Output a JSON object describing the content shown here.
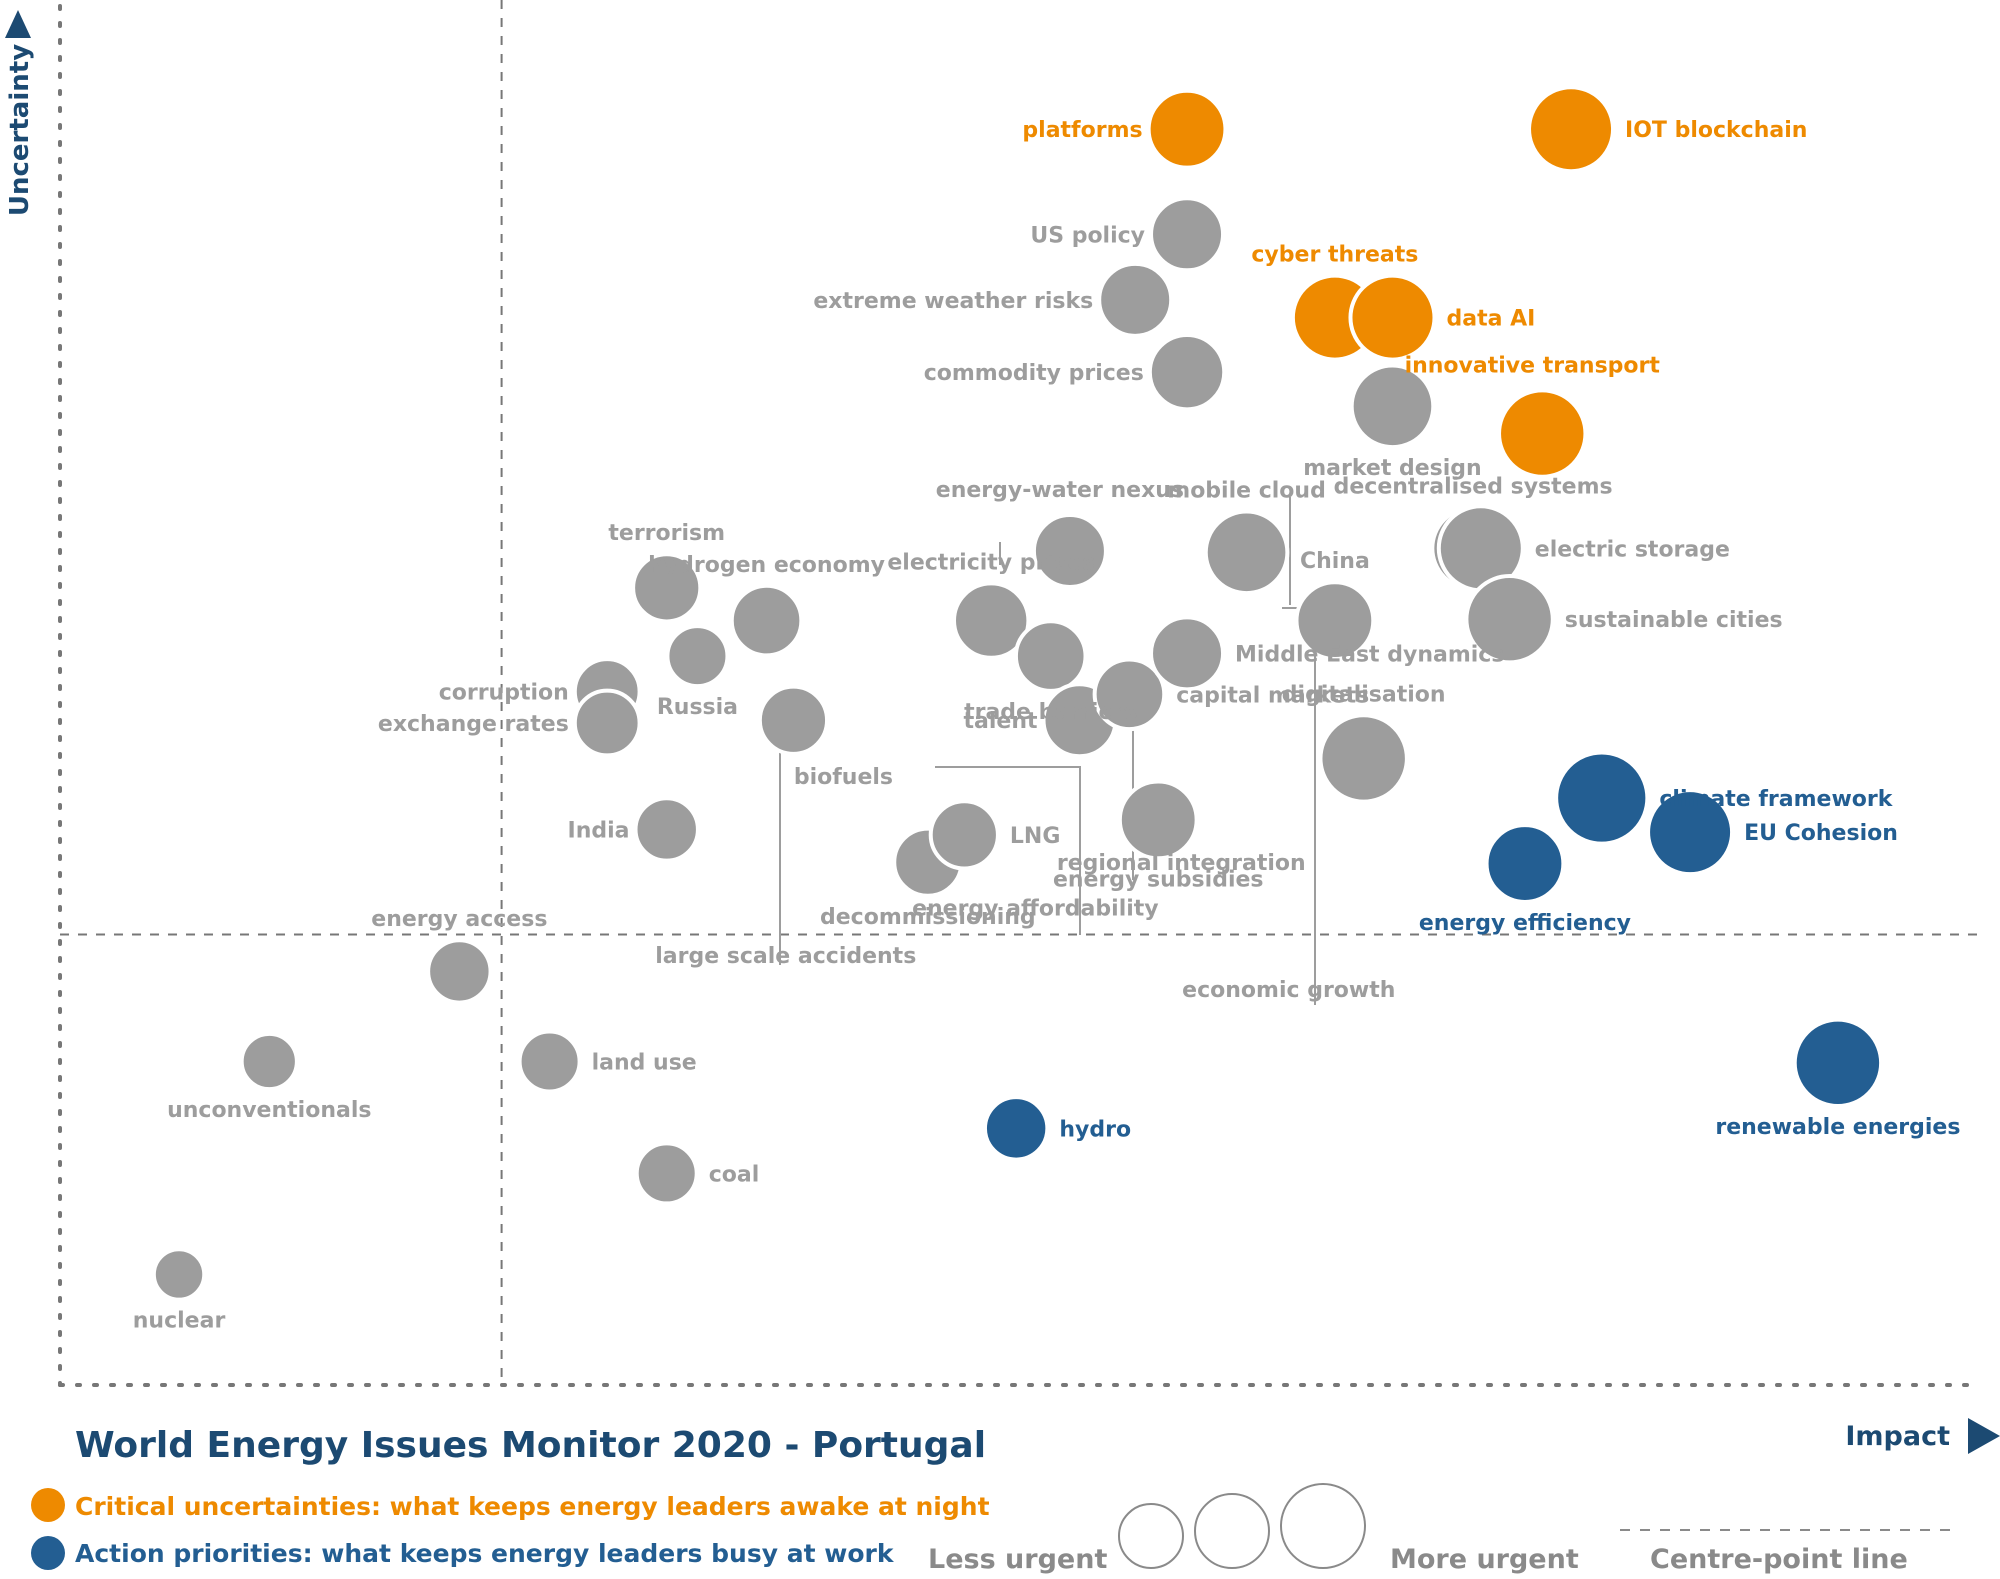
{
  "chart_data": {
    "type": "scatter",
    "title": "World Energy Issues Monitor 2020 - Portugal",
    "xlabel": "Impact",
    "ylabel": "Uncertainty",
    "xlim": [
      0,
      100
    ],
    "ylim": [
      0,
      100
    ],
    "centre_point": {
      "x": 23,
      "y": 33
    },
    "colors": {
      "critical": "#ee8a00",
      "action": "#235e92",
      "other": "#9d9d9d",
      "axis": "#777777",
      "title": "#1c4a72"
    },
    "categories": {
      "critical": "Critical uncertainties: what keeps energy leaders awake at night",
      "action": "Action priorities: what keeps energy leaders busy at work"
    },
    "size_legend": {
      "less": "Less urgent",
      "more": "More urgent",
      "centre": "Centre-point  line"
    },
    "issues": [
      {
        "name": "platforms",
        "x": 58.7,
        "y": 92.0,
        "size": 3.2,
        "cat": "critical",
        "lp": "left"
      },
      {
        "name": "IOT blockchain",
        "x": 78.7,
        "y": 92.0,
        "size": 3.5,
        "cat": "critical",
        "lp": "right"
      },
      {
        "name": "cyber threats",
        "x": 66.4,
        "y": 78.2,
        "size": 3.5,
        "cat": "critical",
        "lp": "above"
      },
      {
        "name": "data AI",
        "x": 69.4,
        "y": 78.2,
        "size": 3.5,
        "cat": "critical",
        "lp": "right"
      },
      {
        "name": "innovative transport",
        "x": 77.2,
        "y": 69.7,
        "size": 3.6,
        "cat": "critical",
        "lp": "aboveleft"
      },
      {
        "name": "US policy",
        "x": 58.7,
        "y": 84.3,
        "size": 3.0,
        "cat": "other",
        "lp": "left"
      },
      {
        "name": "extreme weather risks",
        "x": 56.0,
        "y": 79.5,
        "size": 3.0,
        "cat": "other",
        "lp": "left"
      },
      {
        "name": "commodity prices",
        "x": 58.7,
        "y": 74.2,
        "size": 3.1,
        "cat": "other",
        "lp": "left"
      },
      {
        "name": "market design",
        "x": 69.4,
        "y": 71.7,
        "size": 3.4,
        "cat": "other",
        "lp": "below"
      },
      {
        "name": "energy-water nexus",
        "x": 52.6,
        "y": 61.1,
        "size": 3.0,
        "cat": "other",
        "lp": "aboveleft"
      },
      {
        "name": "mobile cloud",
        "x": 61.8,
        "y": 61.0,
        "size": 3.4,
        "cat": "other",
        "lp": "above"
      },
      {
        "name": "decentralised systems",
        "x": 73.6,
        "y": 61.3,
        "size": 3.4,
        "cat": "other",
        "lp": "above"
      },
      {
        "name": "electric storage",
        "x": 74.0,
        "y": 61.3,
        "size": 3.5,
        "cat": "other",
        "lp": "right"
      },
      {
        "name": "China",
        "x": 66.4,
        "y": 56.0,
        "size": 3.2,
        "cat": "other",
        "lp": "above"
      },
      {
        "name": "sustainable cities",
        "x": 75.5,
        "y": 56.1,
        "size": 3.6,
        "cat": "other",
        "lp": "right"
      },
      {
        "name": "terrorism",
        "x": 31.6,
        "y": 58.4,
        "size": 2.8,
        "cat": "other",
        "lp": "above"
      },
      {
        "name": "hydrogen economy",
        "x": 36.8,
        "y": 56.0,
        "size": 2.9,
        "cat": "other",
        "lp": "above"
      },
      {
        "name": "electricity prices",
        "x": 48.5,
        "y": 56.0,
        "size": 3.1,
        "cat": "other",
        "lp": "above"
      },
      {
        "name": "Russia",
        "x": 33.2,
        "y": 53.4,
        "size": 2.5,
        "cat": "other",
        "lp": "below"
      },
      {
        "name": "corruption",
        "x": 28.5,
        "y": 50.8,
        "size": 2.7,
        "cat": "other",
        "lp": "left"
      },
      {
        "name": "exchange rates",
        "x": 28.5,
        "y": 48.5,
        "size": 2.7,
        "cat": "other",
        "lp": "left"
      },
      {
        "name": "trade barriers",
        "x": 51.6,
        "y": 53.4,
        "size": 2.9,
        "cat": "other",
        "lp": "below"
      },
      {
        "name": "capital markets",
        "x": 55.7,
        "y": 50.6,
        "size": 2.9,
        "cat": "other",
        "lp": "right"
      },
      {
        "name": "talent",
        "x": 53.1,
        "y": 48.7,
        "size": 3.0,
        "cat": "other",
        "lp": "left"
      },
      {
        "name": "Middle East dynamics",
        "x": 58.7,
        "y": 53.6,
        "size": 3.0,
        "cat": "other",
        "lp": "right"
      },
      {
        "name": "digitalisation",
        "x": 67.9,
        "y": 45.9,
        "size": 3.6,
        "cat": "other",
        "lp": "above"
      },
      {
        "name": "biofuels",
        "x": 38.2,
        "y": 48.7,
        "size": 2.8,
        "cat": "other",
        "lp": "belowright"
      },
      {
        "name": "LNG",
        "x": 47.1,
        "y": 40.3,
        "size": 2.8,
        "cat": "other",
        "lp": "right"
      },
      {
        "name": "decommissioning",
        "x": 45.2,
        "y": 38.3,
        "size": 2.8,
        "cat": "other",
        "lp": "below"
      },
      {
        "name": "energy subsidies",
        "x": 57.2,
        "y": 41.4,
        "size": 3.2,
        "cat": "other",
        "lp": "below"
      },
      {
        "name": "India",
        "x": 31.6,
        "y": 40.7,
        "size": 2.6,
        "cat": "other",
        "lp": "left"
      },
      {
        "name": "energy access",
        "x": 20.8,
        "y": 30.3,
        "size": 2.6,
        "cat": "other",
        "lp": "above"
      },
      {
        "name": "unconventionals",
        "x": 10.9,
        "y": 23.7,
        "size": 2.3,
        "cat": "other",
        "lp": "below"
      },
      {
        "name": "land use",
        "x": 25.5,
        "y": 23.7,
        "size": 2.5,
        "cat": "other",
        "lp": "right"
      },
      {
        "name": "coal",
        "x": 31.6,
        "y": 15.5,
        "size": 2.5,
        "cat": "other",
        "lp": "right"
      },
      {
        "name": "nuclear",
        "x": 6.2,
        "y": 8.1,
        "size": 2.1,
        "cat": "other",
        "lp": "below"
      },
      {
        "name": "climate framework",
        "x": 80.3,
        "y": 43.0,
        "size": 3.8,
        "cat": "action",
        "lp": "right"
      },
      {
        "name": "EU Cohesion",
        "x": 84.9,
        "y": 40.5,
        "size": 3.5,
        "cat": "action",
        "lp": "right"
      },
      {
        "name": "energy efficiency",
        "x": 76.3,
        "y": 38.2,
        "size": 3.2,
        "cat": "action",
        "lp": "below"
      },
      {
        "name": "renewable energies",
        "x": 92.6,
        "y": 23.6,
        "size": 3.6,
        "cat": "action",
        "lp": "below"
      },
      {
        "name": "hydro",
        "x": 49.8,
        "y": 18.8,
        "size": 2.6,
        "cat": "action",
        "lp": "right"
      },
      {
        "name": "large scale accidents",
        "x": 37.8,
        "y": 31.5,
        "size": 0,
        "cat": "other",
        "lp": "label"
      },
      {
        "name": "energy affordability",
        "x": 50.8,
        "y": 35.0,
        "size": 0,
        "cat": "other",
        "lp": "label"
      },
      {
        "name": "regional integration",
        "x": 58.4,
        "y": 38.3,
        "size": 0,
        "cat": "other",
        "lp": "label"
      },
      {
        "name": "economic growth",
        "x": 64.0,
        "y": 29.0,
        "size": 0,
        "cat": "other",
        "lp": "label"
      }
    ]
  }
}
